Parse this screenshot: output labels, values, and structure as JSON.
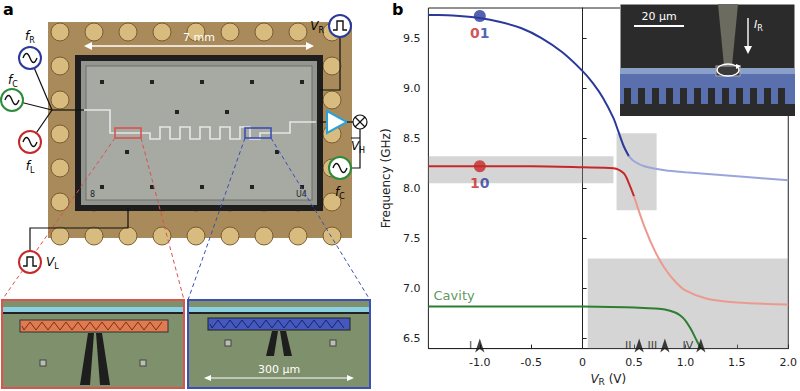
{
  "panel_labels": [
    "a",
    "b"
  ],
  "panel_a": {
    "scale_bar": "7 mm",
    "chip_labels": [
      "8",
      "U4"
    ],
    "drive_sources": [
      {
        "main": "f",
        "sub": "R",
        "color": "#2b3a9a"
      },
      {
        "main": "f",
        "sub": "C",
        "color": "#2e8b3a"
      },
      {
        "main": "f",
        "sub": "L",
        "color": "#c62828"
      }
    ],
    "pulse_lines": [
      {
        "main": "V",
        "sub": "R",
        "color": "#2b3a9a"
      },
      {
        "main": "V",
        "sub": "L",
        "color": "#c62828"
      }
    ],
    "readout": {
      "oscillator": {
        "main": "f",
        "sub": "C",
        "color": "#2e8b3a"
      },
      "output": {
        "main": "V",
        "sub": "H"
      }
    },
    "insets": [
      {
        "color": "#d9534f"
      },
      {
        "color": "#3b4fb5",
        "scale_bar": "300 μm"
      }
    ]
  },
  "chart_data": {
    "type": "line",
    "x_label": {
      "main": "V",
      "sub": "R",
      "rest": " (V)"
    },
    "y_label": "Frequency (GHz)",
    "xlim": [
      -1.5,
      2.0
    ],
    "xticks": [
      {
        "value": -1,
        "label": "-1.0"
      },
      -0.5,
      0,
      0.5,
      {
        "value": 1,
        "label": "1.0"
      },
      1.5,
      {
        "value": 2,
        "label": "2.0"
      }
    ],
    "ylim": [
      6.4,
      9.8
    ],
    "yticks": [
      6.5,
      {
        "value": 7,
        "label": "7.0"
      },
      7.5,
      {
        "value": 8,
        "label": "8.0"
      },
      8.5,
      {
        "value": 9,
        "label": "9.0"
      },
      9.5
    ],
    "grid": false,
    "series": [
      {
        "color": "#2b3a9a",
        "x": [
          -1.5,
          -1.4,
          -1.2,
          -1.0,
          -0.8,
          -0.6,
          -0.4,
          -0.2,
          0,
          0.1,
          0.2,
          0.3,
          0.35,
          0.4,
          0.45
        ],
        "values": [
          9.73,
          9.73,
          9.72,
          9.7,
          9.66,
          9.6,
          9.5,
          9.36,
          9.17,
          9.05,
          8.9,
          8.7,
          8.56,
          8.42,
          8.32
        ]
      },
      {
        "color": "#9aa6d9",
        "x": [
          0.45,
          0.5,
          0.6,
          0.8,
          1.0,
          1.5,
          2.0
        ],
        "values": [
          8.32,
          8.27,
          8.22,
          8.18,
          8.16,
          8.12,
          8.08
        ]
      },
      {
        "color": "#c62828",
        "x": [
          -1.5,
          -1.4,
          -1.0,
          -0.5,
          0,
          0.3,
          0.4,
          0.45,
          0.5
        ],
        "values": [
          8.22,
          8.22,
          8.22,
          8.22,
          8.21,
          8.2,
          8.15,
          8.05,
          7.92
        ]
      },
      {
        "color": "#ec9a8f",
        "x": [
          0.5,
          0.6,
          0.7,
          0.8,
          0.9,
          1.0,
          1.2,
          1.5,
          2.0
        ],
        "values": [
          7.92,
          7.62,
          7.38,
          7.2,
          7.07,
          6.98,
          6.9,
          6.86,
          6.84
        ]
      },
      {
        "color": "#2e7d32",
        "x": [
          -1.5,
          -1.0,
          0,
          0.5,
          0.7,
          0.8,
          0.9,
          0.95,
          1.0,
          1.05,
          1.1,
          1.15
        ],
        "values": [
          6.82,
          6.82,
          6.82,
          6.81,
          6.8,
          6.79,
          6.76,
          6.73,
          6.68,
          6.6,
          6.5,
          6.4
        ]
      }
    ],
    "measured_regions": [
      {
        "x": [
          -1.5,
          0.3
        ],
        "y": [
          8.05,
          8.32
        ]
      },
      {
        "x": [
          0.33,
          0.72
        ],
        "y": [
          7.78,
          8.55
        ]
      },
      {
        "x": [
          0.05,
          2.0
        ],
        "y": [
          6.4,
          7.3
        ]
      }
    ],
    "states": [
      {
        "label": "01",
        "colors": [
          "#c62828",
          "#2b3a9a"
        ],
        "color": "#2b3a9a",
        "x": -1.0,
        "y": 9.72
      },
      {
        "label": "10",
        "colors": [
          "#c62828",
          "#2b3a9a"
        ],
        "color": "#c62828",
        "x": -1.0,
        "y": 8.22
      }
    ],
    "annotations": [
      {
        "text": "Cavity",
        "x": -1.45,
        "y": 6.93,
        "color": "#2e7d32"
      }
    ],
    "bias_points": [
      {
        "label": "I",
        "x": -1.0,
        "y": 6.5
      },
      {
        "label": "II",
        "x": 0.55,
        "y": 6.5
      },
      {
        "label": "III",
        "x": 0.8,
        "y": 6.5
      },
      {
        "label": "IV",
        "x": 1.15,
        "y": 6.5
      }
    ],
    "inset": {
      "scale_bar": "20 μm",
      "current": {
        "main": "I",
        "sub": "R"
      }
    }
  }
}
